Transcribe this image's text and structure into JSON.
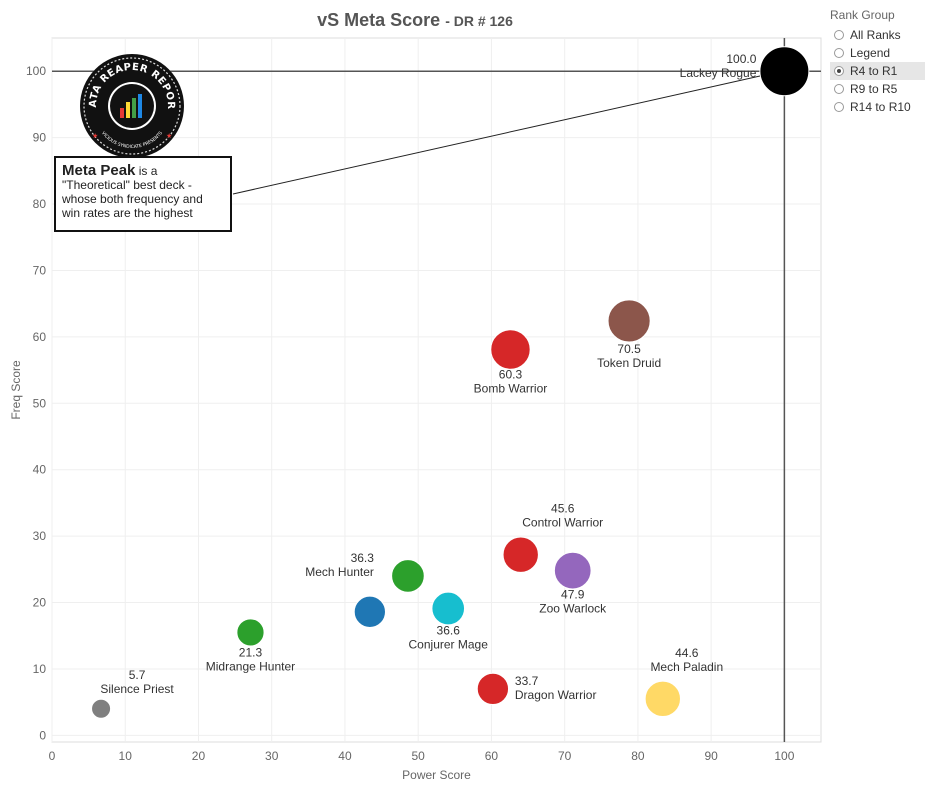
{
  "title": {
    "main": "vS Meta Score",
    "sub": "- DR # 126"
  },
  "chart_data": {
    "type": "scatter",
    "xlabel": "Power Score",
    "ylabel": "Freq Score",
    "xlim": [
      0,
      105
    ],
    "ylim": [
      -1,
      105
    ],
    "xticks": [
      "0",
      "10",
      "20",
      "30",
      "40",
      "50",
      "60",
      "70",
      "80",
      "90",
      "100"
    ],
    "yticks": [
      "0",
      "10",
      "20",
      "30",
      "40",
      "50",
      "60",
      "70",
      "80",
      "90",
      "100"
    ],
    "grid": true,
    "reference_lines": {
      "x": 100,
      "y": 100
    },
    "points": [
      {
        "name": "Lackey Rogue",
        "score": "100.0",
        "x": 100,
        "y": 100,
        "color": "#000000",
        "size": 3.6
      },
      {
        "name": "Token Druid",
        "score": "70.5",
        "x": 78.8,
        "y": 62.4,
        "color": "#8c564b",
        "size": 3.1
      },
      {
        "name": "Bomb Warrior",
        "score": "60.3",
        "x": 62.6,
        "y": 58.1,
        "color": "#d62728",
        "size": 2.9
      },
      {
        "name": "Control Warrior",
        "score": "45.6",
        "x": 64.0,
        "y": 27.2,
        "color": "#d62728",
        "size": 2.6
      },
      {
        "name": "Zoo Warlock",
        "score": "47.9",
        "x": 71.1,
        "y": 24.8,
        "color": "#9467bd",
        "size": 2.7
      },
      {
        "name": "Mech Hunter",
        "score": "36.3",
        "x": 48.6,
        "y": 24.0,
        "color": "#2ca02c",
        "size": 2.4
      },
      {
        "name": "Conjurer Mage",
        "score": "36.6",
        "x": 54.1,
        "y": 19.1,
        "color": "#17becf",
        "size": 2.4
      },
      {
        "name": "",
        "score": "",
        "x": 43.4,
        "y": 18.6,
        "color": "#1f77b4",
        "size": 2.3
      },
      {
        "name": "Midrange Hunter",
        "score": "21.3",
        "x": 27.1,
        "y": 15.5,
        "color": "#2ca02c",
        "size": 2.0
      },
      {
        "name": "Dragon Warrior",
        "score": "33.7",
        "x": 60.2,
        "y": 7.0,
        "color": "#d62728",
        "size": 2.3
      },
      {
        "name": "Mech Paladin",
        "score": "44.6",
        "x": 83.4,
        "y": 5.5,
        "color": "#ffd966",
        "size": 2.6
      },
      {
        "name": "Silence Priest",
        "score": "5.7",
        "x": 6.7,
        "y": 4.0,
        "color": "#7f7f7f",
        "size": 1.4
      }
    ]
  },
  "annotation": {
    "strong": "Meta Peak",
    "line1": " is a",
    "line2": "\"Theoretical\" best deck -",
    "line3": "whose both frequency and",
    "line4": "win rates are the highest"
  },
  "logo": {
    "top_text": "DATA REAPER REPORT",
    "bottom_text": "VICIOUS SYNDICATE PRESENTS"
  },
  "rank_group": {
    "title": "Rank Group",
    "options": [
      "All Ranks",
      "Legend",
      "R4 to R1",
      "R9 to R5",
      "R14 to R10"
    ],
    "selected": "R4 to R1"
  }
}
